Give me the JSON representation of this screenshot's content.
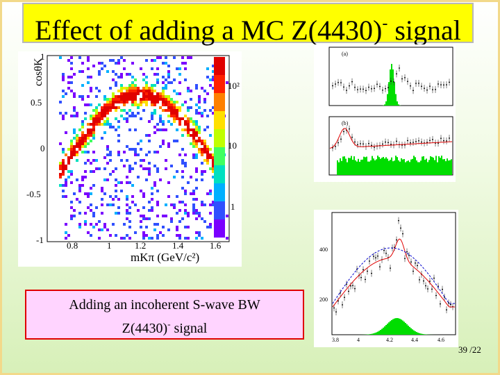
{
  "slide": {
    "title_main": "Effect of adding a MC Z(4430)",
    "title_sup": "-",
    "title_tail": " signal",
    "caption_line1": "Adding an incoherent S-wave BW",
    "caption_line2_pre": "Z(4430)",
    "caption_line2_sup": "-",
    "caption_line2_post": " signal",
    "page_number": "39 /22"
  },
  "scatter_plot": {
    "ylabel": "cosθK",
    "xlabel": "mKπ  (GeV/c²)",
    "x_ticks": [
      "0.8",
      "1",
      "1.2",
      "1.4",
      "1.6"
    ],
    "y_ticks": [
      "1",
      "0.5",
      "0",
      "-0.5",
      "-1"
    ],
    "z_ticks": [
      "10²",
      "10",
      "1"
    ]
  },
  "mini_plots": {
    "plot_a": {
      "panel_label": "(a)"
    },
    "plot_b": {
      "panel_label": "(b)"
    },
    "plot_c": {
      "x_ticks": [
        "3.8",
        "4",
        "4.2",
        "4.4",
        "4.6"
      ],
      "y_ticks": [
        "200",
        "400"
      ]
    }
  },
  "colors": {
    "title_bg": "#ffff00",
    "caption_bg": "#ffd4ff",
    "caption_border": "#e00000",
    "fit_red": "#e00000",
    "fit_blue": "#0000cc",
    "signal_green": "#00dd00"
  }
}
